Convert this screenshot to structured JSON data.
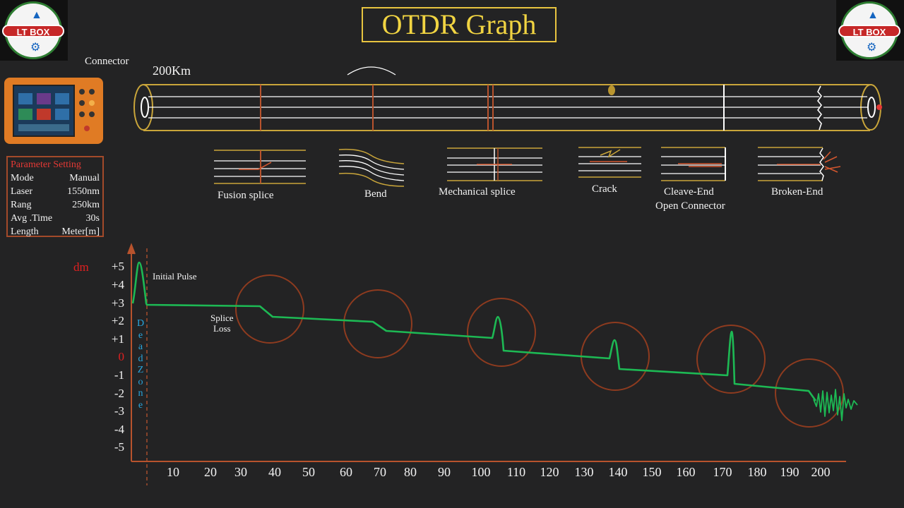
{
  "title": "OTDR Graph",
  "logo_text": "LT BOX",
  "fiber": {
    "connector_label": "Connector",
    "length_label": "200Km"
  },
  "events": [
    {
      "label": "Fusion splice"
    },
    {
      "label": "Bend"
    },
    {
      "label": "Mechanical splice"
    },
    {
      "label": "Crack"
    },
    {
      "label": "Cleave-End",
      "label2": "Open Connector"
    },
    {
      "label": "Broken-End"
    }
  ],
  "parameters": {
    "title": "Parameter Setting",
    "rows": [
      {
        "key": "Mode",
        "value": "Manual"
      },
      {
        "key": "Laser",
        "value": "1550nm"
      },
      {
        "key": "Rang",
        "value": "250km"
      },
      {
        "key": "Avg .Time",
        "value": "30s"
      },
      {
        "key": "Length",
        "value": "Meter[m]"
      }
    ]
  },
  "colors": {
    "trace": "#1db954",
    "axis": "#b8532d",
    "circle": "#8e3b1f",
    "fiber": "#c9a53a",
    "title": "#f1d442",
    "dead_zone": "#29a7df",
    "zero": "#e02020"
  },
  "chart_data": {
    "type": "line",
    "ylabel": "dm",
    "y_ticks": [
      "+5",
      "+4",
      "+3",
      "+2",
      "+1",
      "0",
      "-1",
      "-2",
      "-3",
      "-4",
      "-5"
    ],
    "x_ticks": [
      "10",
      "20",
      "30",
      "40",
      "50",
      "60",
      "70",
      "80",
      "90",
      "100",
      "110",
      "120",
      "130",
      "140",
      "150",
      "160",
      "170",
      "180",
      "190",
      "200"
    ],
    "annotations": {
      "initial_pulse": "Initial Pulse",
      "splice_loss_1": "Splice",
      "splice_loss_2": "Loss",
      "dead_zone": [
        "D",
        "e",
        "a",
        "d",
        "Z",
        "o",
        "n",
        "e"
      ]
    }
  }
}
